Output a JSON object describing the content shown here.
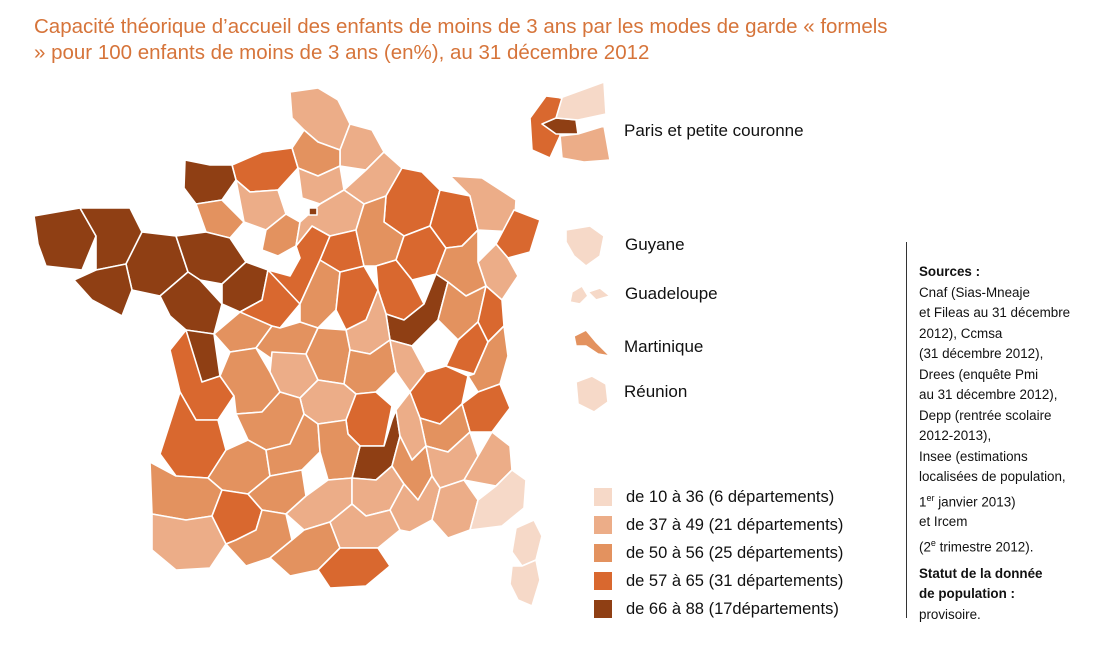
{
  "title": "Capacité théorique d’accueil des enfants de moins de 3 ans par les modes de garde « formels » pour 100 enfants de moins de 3 ans (en%), au 31 décembre 2012",
  "colors": {
    "c1": "#f6d9c8",
    "c2": "#ecad88",
    "c3": "#e3925f",
    "c4": "#d9682f",
    "c5": "#8f3f14",
    "border": "#ffffff"
  },
  "insets": {
    "paris": "Paris et petite couronne",
    "guyane": "Guyane",
    "guadeloupe": "Guadeloupe",
    "martinique": "Martinique",
    "reunion": "Réunion"
  },
  "legend": [
    {
      "label": "de 10 à 36 (6 départements)",
      "color": "#f6d9c8"
    },
    {
      "label": "de 37 à 49 (21 départements)",
      "color": "#ecad88"
    },
    {
      "label": "de 50 à 56 (25 départements)",
      "color": "#e3925f"
    },
    {
      "label": "de 57 à 65 (31 départements)",
      "color": "#d9682f"
    },
    {
      "label": "de 66 à 88 (17départements)",
      "color": "#8f3f14"
    }
  ],
  "sources": {
    "heading": "Sources :",
    "lines": [
      "Cnaf (Sias-Mneaje",
      "et Fileas au 31 décembre",
      "2012), Ccmsa",
      "(31 décembre 2012),",
      "Drees (enquête Pmi",
      "au 31 décembre 2012),",
      "Depp (rentrée scolaire",
      "2012-2013),",
      "Insee (estimations",
      "localisées de population,"
    ],
    "line_jan": {
      "pre": "1",
      "sup": "er",
      "post": " janvier 2013)"
    },
    "line_ircem": "et Ircem",
    "line_tri": {
      "pre": "(2",
      "sup": "e",
      "post": " trimestre 2012)."
    },
    "statut_heading_1": "Statut de la donnée",
    "statut_heading_2": "de population :",
    "statut_value": "provisoire."
  }
}
